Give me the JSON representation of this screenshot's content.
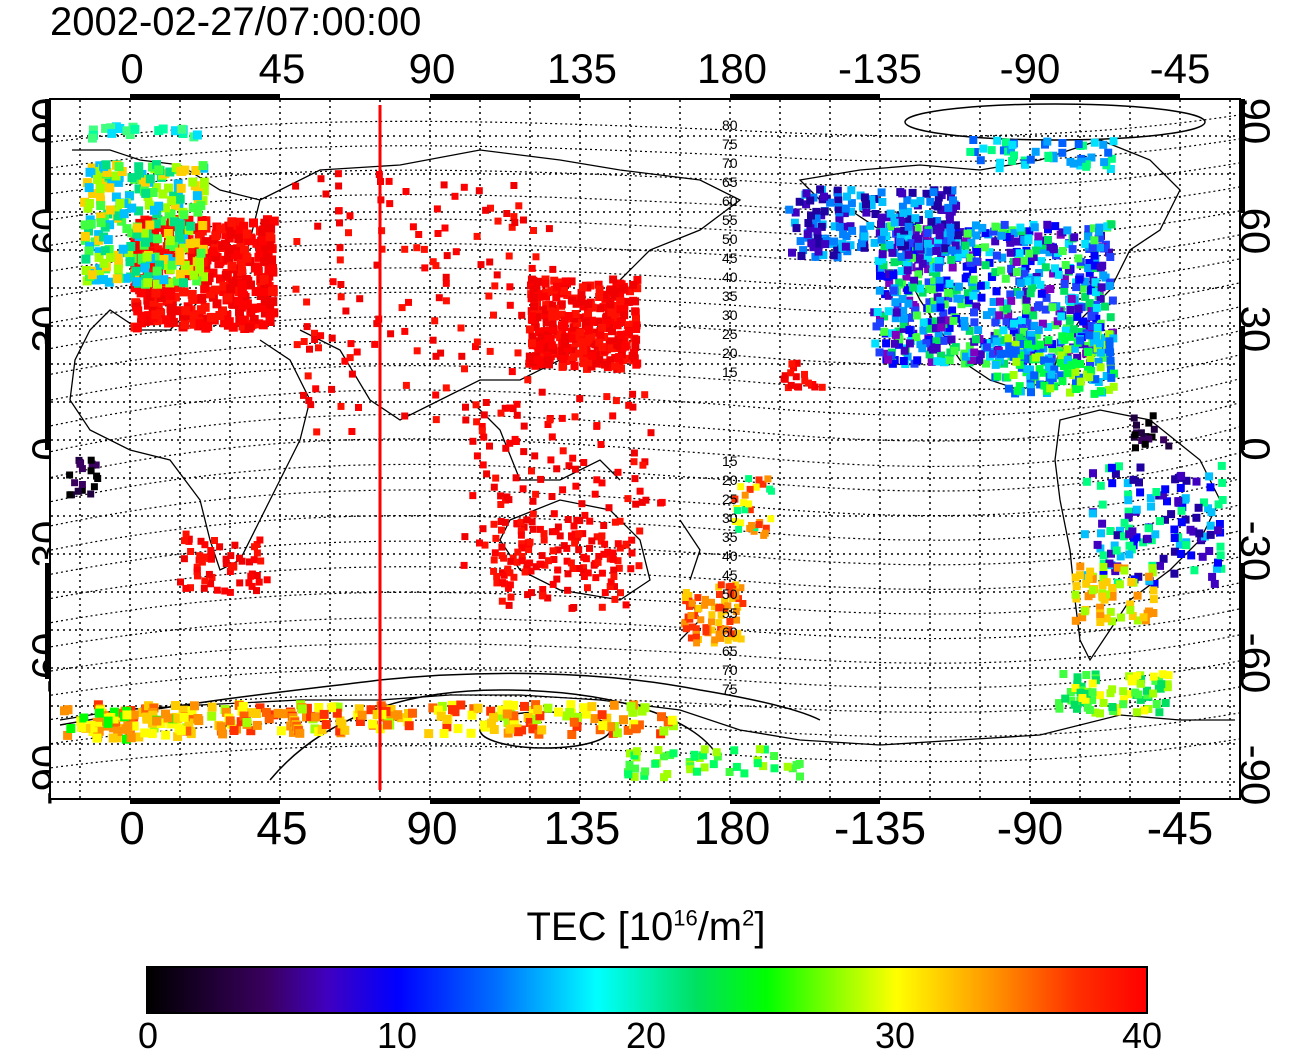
{
  "timestamp": "2002-02-27/07:00:00",
  "axes": {
    "top_ticks": [
      "0",
      "45",
      "90",
      "135",
      "180",
      "-135",
      "-90",
      "-45"
    ],
    "bottom_ticks": [
      "0",
      "45",
      "90",
      "135",
      "180",
      "-135",
      "-90",
      "-45"
    ],
    "left_ticks": [
      "90",
      "60",
      "30",
      "0",
      "-30",
      "-60",
      "-90"
    ],
    "right_ticks": [
      "90",
      "60",
      "30",
      "0",
      "-30",
      "-60",
      "-90"
    ]
  },
  "contour_labels_north": [
    "80",
    "75",
    "70",
    "65",
    "60",
    "55",
    "50",
    "45",
    "40",
    "35",
    "30",
    "25",
    "20",
    "15"
  ],
  "contour_labels_south": [
    "15",
    "20",
    "25",
    "30",
    "35",
    "40",
    "45",
    "50",
    "55",
    "60",
    "65",
    "70",
    "75"
  ],
  "colorbar": {
    "title_prefix": "TEC  [10",
    "title_exp1": "16",
    "title_mid": "/m",
    "title_exp2": "2",
    "title_suffix": "]",
    "ticks": [
      "0",
      "10",
      "20",
      "30",
      "40"
    ]
  },
  "colors": {
    "red": "#ff0000",
    "meridian": "#ff0000"
  }
}
